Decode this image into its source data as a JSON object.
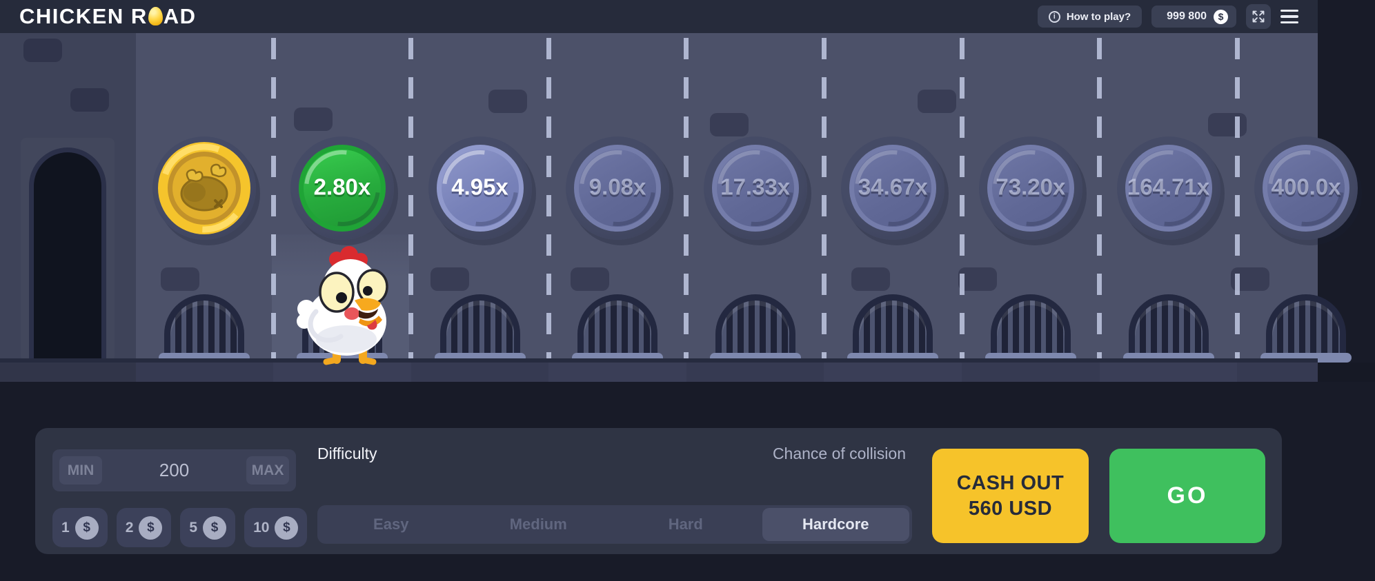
{
  "topbar": {
    "logo_text_1": "CHICKEN R",
    "logo_text_2": "AD",
    "how_to_play_label": "How to play?",
    "info_glyph": "i",
    "balance_value": "999 800",
    "currency_glyph": "$"
  },
  "game": {
    "tiles": [
      {
        "type": "coin",
        "label": "",
        "state": "passed"
      },
      {
        "type": "mult",
        "label": "2.80x",
        "state": "current"
      },
      {
        "type": "mult",
        "label": "4.95x",
        "state": "next"
      },
      {
        "type": "mult",
        "label": "9.08x",
        "state": "future"
      },
      {
        "type": "mult",
        "label": "17.33x",
        "state": "future"
      },
      {
        "type": "mult",
        "label": "34.67x",
        "state": "future"
      },
      {
        "type": "mult",
        "label": "73.20x",
        "state": "future"
      },
      {
        "type": "mult",
        "label": "164.71x",
        "state": "future"
      },
      {
        "type": "mult",
        "label": "400.0x",
        "state": "future"
      }
    ]
  },
  "controls": {
    "bet": {
      "min_label": "MIN",
      "value": "200",
      "max_label": "MAX"
    },
    "chips": [
      {
        "label": "1",
        "symbol": "$"
      },
      {
        "label": "2",
        "symbol": "$"
      },
      {
        "label": "5",
        "symbol": "$"
      },
      {
        "label": "10",
        "symbol": "$"
      }
    ],
    "difficulty": {
      "label": "Difficulty",
      "options": [
        "Easy",
        "Medium",
        "Hard",
        "Hardcore"
      ],
      "selected": "Hardcore"
    },
    "collision_label": "Chance of collision",
    "cashout": {
      "line1": "CASH OUT",
      "line2": "560 USD"
    },
    "go_label": "GO"
  },
  "colors": {
    "road": "#4c5169",
    "panel": "#2f3444",
    "accent_green": "#3fc05e",
    "accent_yellow": "#f6c32a",
    "tile_blue": "#7d86bd",
    "tile_green": "#2bb545",
    "coin_gold": "#f5c42c"
  }
}
